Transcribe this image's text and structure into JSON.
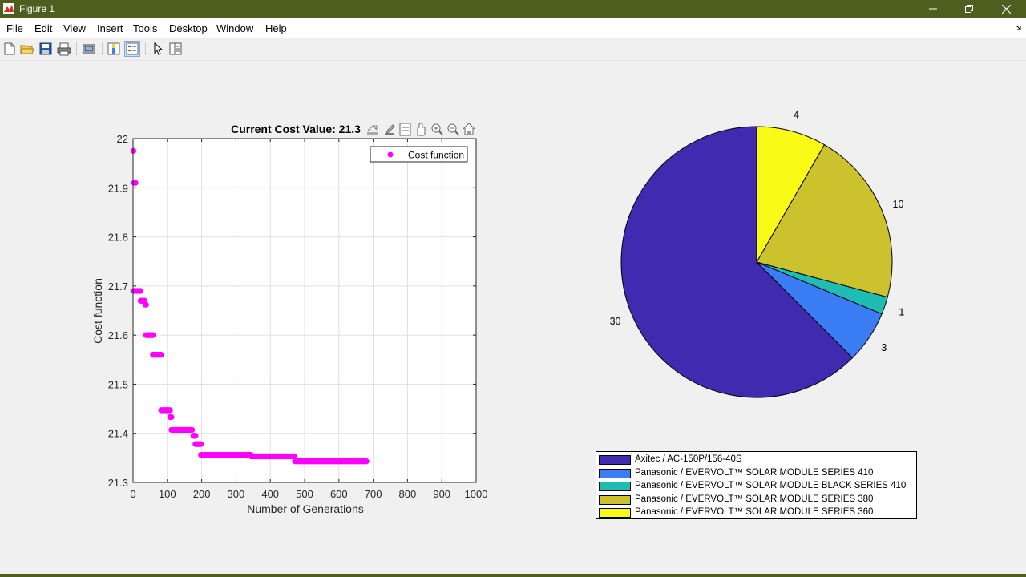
{
  "window": {
    "title": "Figure 1"
  },
  "menu": [
    "File",
    "Edit",
    "View",
    "Insert",
    "Tools",
    "Desktop",
    "Window",
    "Help"
  ],
  "toolbar": [
    "new-figure-icon",
    "open-icon",
    "save-icon",
    "print-icon",
    "print-preview-icon",
    "colorbar-icon",
    "legend-icon",
    "pointer-icon",
    "property-inspector-icon"
  ],
  "axes_toolbar": [
    "export-icon",
    "brush-icon",
    "datatips-icon",
    "pan-icon",
    "zoom-in-icon",
    "zoom-out-icon",
    "home-icon"
  ],
  "chart_data": [
    {
      "type": "scatter",
      "title": "Current Cost Value: 21.3",
      "xlabel": "Number of Generations",
      "ylabel": "Cost function",
      "xlim": [
        0,
        1000
      ],
      "ylim": [
        21.3,
        22
      ],
      "xticks": [
        0,
        100,
        200,
        300,
        400,
        500,
        600,
        700,
        800,
        900,
        1000
      ],
      "yticks": [
        21.3,
        21.4,
        21.5,
        21.6,
        21.7,
        21.8,
        21.9,
        22
      ],
      "grid": true,
      "legend_position": "top-right",
      "series": [
        {
          "name": "Cost function",
          "color": "#ff00ff",
          "segments": [
            {
              "x0": 1,
              "x1": 1,
              "y": 21.975
            },
            {
              "x0": 3,
              "x1": 8,
              "y": 21.91
            },
            {
              "x0": 2,
              "x1": 22,
              "y": 21.69
            },
            {
              "x0": 22,
              "x1": 35,
              "y": 21.67
            },
            {
              "x0": 36,
              "x1": 38,
              "y": 21.662
            },
            {
              "x0": 38,
              "x1": 58,
              "y": 21.6
            },
            {
              "x0": 58,
              "x1": 82,
              "y": 21.56
            },
            {
              "x0": 82,
              "x1": 108,
              "y": 21.447
            },
            {
              "x0": 108,
              "x1": 112,
              "y": 21.433
            },
            {
              "x0": 112,
              "x1": 173,
              "y": 21.407
            },
            {
              "x0": 176,
              "x1": 182,
              "y": 21.395
            },
            {
              "x0": 182,
              "x1": 198,
              "y": 21.378
            },
            {
              "x0": 198,
              "x1": 345,
              "y": 21.356
            },
            {
              "x0": 345,
              "x1": 472,
              "y": 21.353
            },
            {
              "x0": 472,
              "x1": 680,
              "y": 21.343
            }
          ]
        }
      ]
    },
    {
      "type": "pie",
      "slices": [
        {
          "label": "Axitec / AC-150P/156-40S",
          "value": 30,
          "color": "#3f2ab0"
        },
        {
          "label": "Panasonic / EVERVOLT™ SOLAR MODULE SERIES 410",
          "value": 3,
          "color": "#3a7df5"
        },
        {
          "label": "Panasonic / EVERVOLT™ SOLAR MODULE BLACK SERIES 410",
          "value": 1,
          "color": "#1fbcb4"
        },
        {
          "label": "Panasonic / EVERVOLT™ SOLAR MODULE SERIES 380",
          "value": 10,
          "color": "#cbc22d"
        },
        {
          "label": "Panasonic / EVERVOLT™ SOLAR MODULE SERIES 360",
          "value": 4,
          "color": "#fafa17"
        }
      ],
      "legend_position": "bottom"
    }
  ]
}
